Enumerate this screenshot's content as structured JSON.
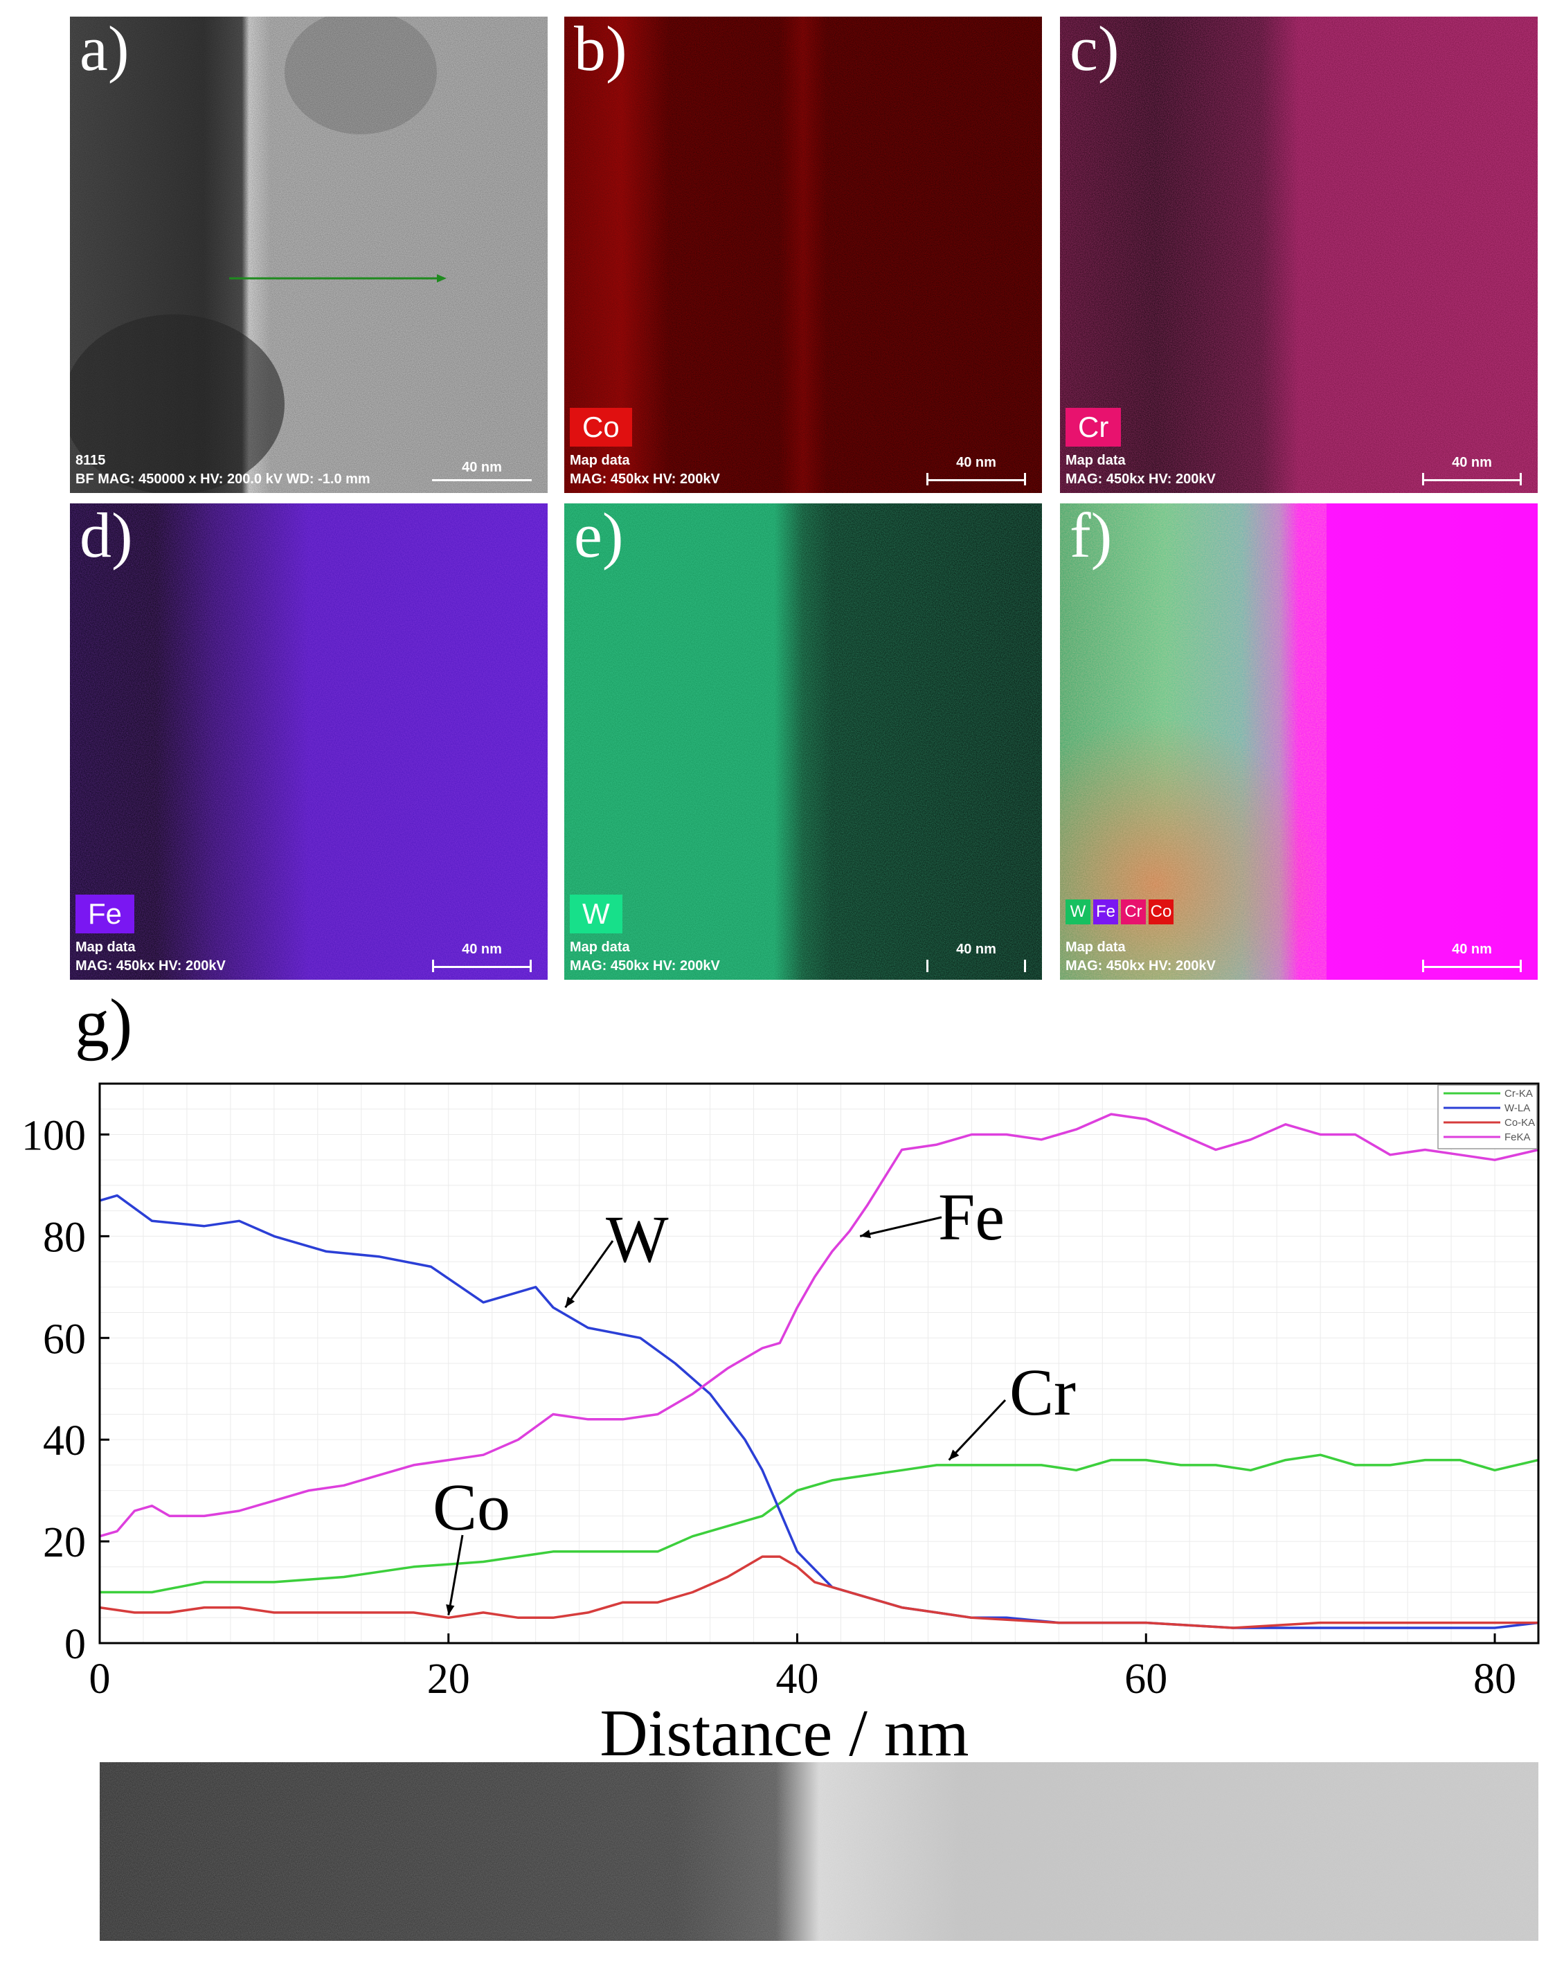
{
  "panels": [
    {
      "letter": "a)",
      "element": "",
      "color": "#8a8a8a",
      "info": [
        "8115",
        "BF  MAG: 450000 x  HV: 200.0 kV  WD: -1.0 mm"
      ],
      "scale": "40 nm"
    },
    {
      "letter": "b)",
      "element": "Co",
      "color": "#e01010",
      "info": [
        "Map data",
        "MAG: 450kx  HV: 200kV"
      ],
      "scale": "40 nm"
    },
    {
      "letter": "c)",
      "element": "Cr",
      "color": "#e8126e",
      "info": [
        "Map data",
        "MAG: 450kx  HV: 200kV"
      ],
      "scale": "40 nm"
    },
    {
      "letter": "d)",
      "element": "Fe",
      "color": "#7a17f2",
      "info": [
        "Map data",
        "MAG: 450kx  HV: 200kV"
      ],
      "scale": "40 nm"
    },
    {
      "letter": "e)",
      "element": "W",
      "color": "#17e08a",
      "info": [
        "Map data",
        "MAG: 450kx  HV: 200kV"
      ],
      "scale": "40 nm"
    },
    {
      "letter": "f)",
      "element": "",
      "color": "#ff10ff",
      "info": [
        "Map data",
        "MAG: 450kx  HV: 200kV"
      ],
      "scale": "40 nm"
    }
  ],
  "overlay_legend": [
    {
      "label": "W",
      "color": "#17c060"
    },
    {
      "label": "Fe",
      "color": "#7a17f2"
    },
    {
      "label": "Cr",
      "color": "#e8126e"
    },
    {
      "label": "Co",
      "color": "#e01010"
    }
  ],
  "chart_label": "g)",
  "chart_data": {
    "type": "line",
    "xlabel": "Distance / nm",
    "ylabel": "",
    "xlim": [
      0,
      82.5
    ],
    "ylim": [
      0,
      110
    ],
    "xticks": [
      0,
      20,
      40,
      60,
      80
    ],
    "yticks": [
      0,
      20,
      40,
      60,
      80,
      100
    ],
    "grid": true,
    "legend_position": "top-right",
    "series": [
      {
        "name": "Cr-KA",
        "annotation": "Cr",
        "color": "#3ccf3c",
        "x": [
          0,
          3,
          6,
          10,
          14,
          18,
          22,
          26,
          30,
          32,
          34,
          36,
          38,
          40,
          42,
          44,
          46,
          48,
          50,
          52,
          54,
          56,
          58,
          60,
          62,
          64,
          66,
          68,
          70,
          72,
          74,
          76,
          78,
          80,
          82.5
        ],
        "y": [
          10,
          10,
          12,
          12,
          13,
          15,
          16,
          18,
          18,
          18,
          21,
          23,
          25,
          30,
          32,
          33,
          34,
          35,
          35,
          35,
          35,
          34,
          36,
          36,
          35,
          35,
          34,
          36,
          37,
          35,
          35,
          36,
          36,
          34,
          36
        ]
      },
      {
        "name": "W-LA",
        "annotation": "W",
        "color": "#2b3fd6",
        "x": [
          0,
          1,
          3,
          6,
          8,
          10,
          13,
          16,
          19,
          22,
          25,
          26,
          28,
          31,
          33,
          35,
          37,
          38,
          39,
          40,
          42,
          44,
          46,
          48,
          50,
          52,
          55,
          60,
          65,
          70,
          75,
          80,
          82.5
        ],
        "y": [
          87,
          88,
          83,
          82,
          83,
          80,
          77,
          76,
          74,
          67,
          70,
          66,
          62,
          60,
          55,
          49,
          40,
          34,
          26,
          18,
          11,
          9,
          7,
          6,
          5,
          5,
          4,
          4,
          3,
          3,
          3,
          3,
          4
        ]
      },
      {
        "name": "Co-KA",
        "annotation": "Co",
        "color": "#d63c3c",
        "x": [
          0,
          2,
          4,
          6,
          8,
          10,
          12,
          14,
          16,
          18,
          20,
          22,
          24,
          26,
          28,
          30,
          32,
          34,
          36,
          38,
          39,
          40,
          41,
          42,
          44,
          46,
          48,
          50,
          55,
          60,
          65,
          70,
          75,
          80,
          82.5
        ],
        "y": [
          7,
          6,
          6,
          7,
          7,
          6,
          6,
          6,
          6,
          6,
          5,
          6,
          5,
          5,
          6,
          8,
          8,
          10,
          13,
          17,
          17,
          15,
          12,
          11,
          9,
          7,
          6,
          5,
          4,
          4,
          3,
          4,
          4,
          4,
          4
        ]
      },
      {
        "name": "FeKA",
        "annotation": "Fe",
        "color": "#dd3fdd",
        "x": [
          0,
          1,
          2,
          3,
          4,
          6,
          8,
          10,
          12,
          14,
          16,
          18,
          20,
          22,
          24,
          26,
          28,
          30,
          32,
          34,
          36,
          38,
          39,
          40,
          41,
          42,
          43,
          44,
          46,
          48,
          50,
          52,
          54,
          56,
          58,
          60,
          62,
          64,
          66,
          68,
          70,
          72,
          74,
          76,
          78,
          80,
          82.5
        ],
        "y": [
          21,
          22,
          26,
          27,
          25,
          25,
          26,
          28,
          30,
          31,
          33,
          35,
          36,
          37,
          40,
          45,
          44,
          44,
          45,
          49,
          54,
          58,
          59,
          66,
          72,
          77,
          81,
          86,
          97,
          98,
          100,
          100,
          99,
          101,
          104,
          103,
          100,
          97,
          99,
          102,
          100,
          100,
          96,
          97,
          96,
          95,
          97
        ]
      }
    ]
  },
  "annotations": {
    "w": "W",
    "fe": "Fe",
    "cr": "Cr",
    "co": "Co"
  }
}
